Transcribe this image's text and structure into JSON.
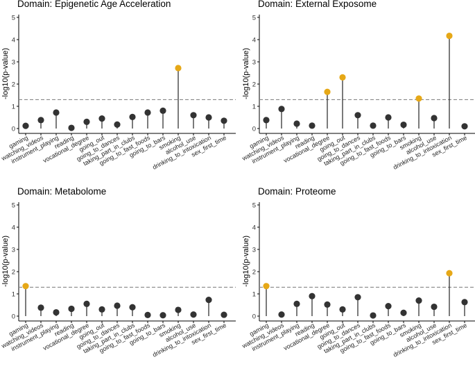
{
  "colors": {
    "significant": "#E6A817",
    "normal": "#333333",
    "threshold_line": "#888888",
    "stem": "#222222"
  },
  "chart_data": [
    {
      "type": "lollipop",
      "title": "Domain: Epigenetic Age Acceleration",
      "ylabel": "-log10(p-value)",
      "ylim": [
        0,
        5
      ],
      "yticks": [
        "0",
        "1",
        "2",
        "3",
        "4",
        "5"
      ],
      "threshold": 1.3,
      "categories": [
        "gaming",
        "watching_videos",
        "instrument_playing",
        "reading",
        "vocational_degree",
        "going_out",
        "going_to_dances",
        "taking_part_in_clubs",
        "going_to_fast_foods",
        "going_to_bars",
        "smoking",
        "alcohol_use",
        "drinking_to_intoxication",
        "sex_first_time"
      ],
      "values": [
        0.12,
        0.38,
        0.72,
        0.03,
        0.3,
        0.45,
        0.18,
        0.52,
        0.72,
        0.8,
        2.72,
        0.6,
        0.5,
        0.35
      ]
    },
    {
      "type": "lollipop",
      "title": "Domain: External Exposome",
      "ylabel": "-log10(p-value)",
      "ylim": [
        0,
        5
      ],
      "yticks": [
        "0",
        "1",
        "2",
        "3",
        "4",
        "5"
      ],
      "threshold": 1.3,
      "categories": [
        "gaming",
        "watching_videos",
        "instrument_playing",
        "reading",
        "vocational_degree",
        "going_out",
        "going_to_dances",
        "taking_part_in_clubs",
        "going_to_fast_foods",
        "going_to_bars",
        "smoking",
        "alcohol_use",
        "drinking_to_intoxication",
        "sex_first_time"
      ],
      "values": [
        0.38,
        0.88,
        0.22,
        0.13,
        1.65,
        2.3,
        0.6,
        0.13,
        0.5,
        0.17,
        1.35,
        0.47,
        4.17,
        0.1
      ]
    },
    {
      "type": "lollipop",
      "title": "Domain: Metabolome",
      "ylabel": "-log10(p-value)",
      "ylim": [
        0,
        5
      ],
      "yticks": [
        "0",
        "1",
        "2",
        "3",
        "4",
        "5"
      ],
      "threshold": 1.3,
      "categories": [
        "gaming",
        "watching_videos",
        "instrument_playing",
        "reading",
        "vocational_degree",
        "going_out",
        "going_to_dances",
        "taking_part_in_clubs",
        "going_to_fast_foods",
        "going_to_bars",
        "smoking",
        "alcohol_use",
        "drinking_to_intoxication",
        "sex_first_time"
      ],
      "values": [
        1.35,
        0.38,
        0.17,
        0.33,
        0.55,
        0.3,
        0.47,
        0.4,
        0.05,
        0.04,
        0.28,
        0.07,
        0.73,
        0.06
      ]
    },
    {
      "type": "lollipop",
      "title": "Domain: Proteome",
      "ylabel": "-log10(p-value)",
      "ylim": [
        0,
        5
      ],
      "yticks": [
        "0",
        "1",
        "2",
        "3",
        "4",
        "5"
      ],
      "threshold": 1.3,
      "categories": [
        "gaming",
        "watching_videos",
        "instrument_playing",
        "reading",
        "vocational_degree",
        "going_out",
        "going_to_dances",
        "taking_part_in_clubs",
        "going_to_fast_foods",
        "going_to_bars",
        "smoking",
        "alcohol_use",
        "drinking_to_intoxication",
        "sex_first_time"
      ],
      "values": [
        1.35,
        0.07,
        0.55,
        0.9,
        0.52,
        0.3,
        0.85,
        0.03,
        0.45,
        0.15,
        0.7,
        0.42,
        1.93,
        0.63
      ]
    }
  ]
}
